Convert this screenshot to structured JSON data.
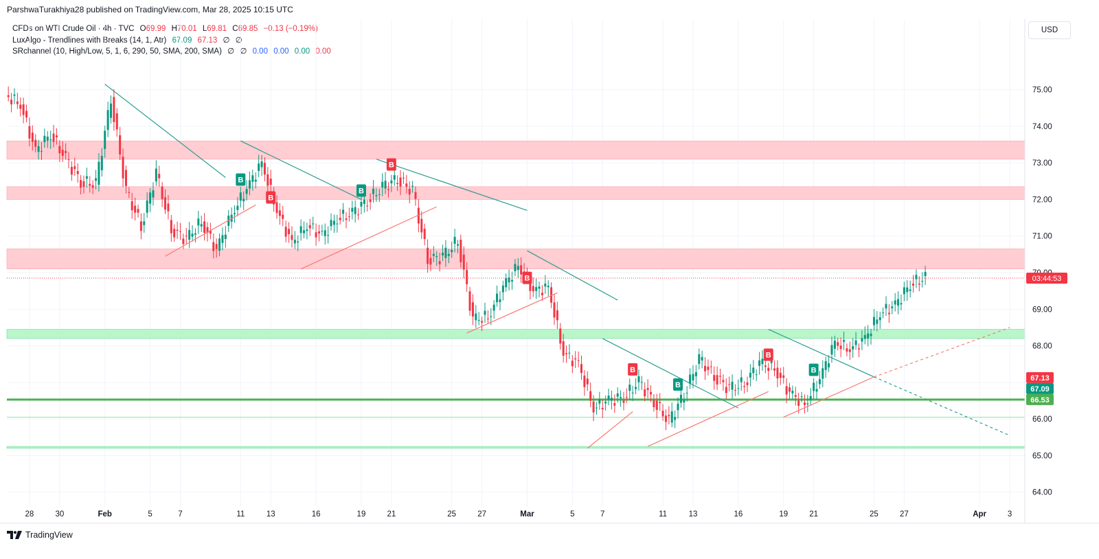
{
  "header": {
    "published_by": "ParshwaTurakhiya28 published on TradingView.com, Mar 28, 2025 10:15 UTC"
  },
  "legend": {
    "symbol": "CFDs on WTI Crude Oil · 4h · TVC",
    "open_label": "O",
    "open": "69.99",
    "high_label": "H",
    "high": "70.01",
    "low_label": "L",
    "low": "69.81",
    "close_label": "C",
    "close": "69.85",
    "change": "−0.13 (−0.19%)",
    "indicator1_name": "LuxAlgo - Trendlines with Breaks (14, 1, Atr)",
    "indicator1_v1": "67.09",
    "indicator1_v2": "67.13",
    "indicator1_e1": "∅",
    "indicator1_e2": "∅",
    "indicator2_name": "SRchannel (10, High/Low, 5, 1, 6, 290, 50, SMA, 200, SMA)",
    "indicator2_e1": "∅",
    "indicator2_e2": "∅",
    "indicator2_v1": "0.00",
    "indicator2_v2": "0.00",
    "indicator2_v3": "0.00",
    "indicator2_v4": "0.00"
  },
  "currency": "USD",
  "footer": {
    "brand": "TradingView",
    "logo_icon": "tradingview-logo-icon"
  },
  "colors": {
    "up": "#089981",
    "down": "#f23645",
    "trend_teal": "#2a9d8f",
    "trend_red": "#f77b72",
    "resistance_zone": "#ffcdd2",
    "support_zone": "#b9f6ca",
    "support_line": "#4caf50"
  },
  "chart_data": {
    "type": "candlestick",
    "title": "CFDs on WTI Crude Oil · 4h · TVC",
    "ylim": [
      63.6,
      75.8
    ],
    "y_ticks": [
      "75.00",
      "74.00",
      "73.00",
      "72.00",
      "71.00",
      "70.00",
      "69.00",
      "68.00",
      "67.00",
      "66.00",
      "65.00",
      "64.00"
    ],
    "x_ticks": [
      "28",
      "30",
      "Feb",
      "5",
      "7",
      "11",
      "13",
      "16",
      "19",
      "21",
      "25",
      "27",
      "Mar",
      "5",
      "7",
      "11",
      "13",
      "16",
      "19",
      "21",
      "25",
      "27",
      "Apr",
      "3"
    ],
    "x_tick_dates": [
      "2025-01-28",
      "2025-01-30",
      "2025-02-02",
      "2025-02-05",
      "2025-02-07",
      "2025-02-11",
      "2025-02-13",
      "2025-02-16",
      "2025-02-19",
      "2025-02-21",
      "2025-02-25",
      "2025-02-27",
      "2025-03-02",
      "2025-03-05",
      "2025-03-07",
      "2025-03-11",
      "2025-03-13",
      "2025-03-16",
      "2025-03-19",
      "2025-03-21",
      "2025-03-25",
      "2025-03-27",
      "2025-04-01",
      "2025-04-03"
    ],
    "last_close": 69.85,
    "countdown": "03:44:53",
    "price_labels": [
      {
        "value": "67.13",
        "color": "#f23645"
      },
      {
        "value": "67.09",
        "color": "#089981"
      },
      {
        "value": "66.53",
        "color": "#4caf50"
      }
    ],
    "candles": [
      {
        "date": "2025-01-27",
        "close": 74.6
      },
      {
        "date": "2025-01-28",
        "close": 73.3
      },
      {
        "date": "2025-01-29",
        "close": 73.8
      },
      {
        "date": "2025-01-30",
        "close": 73.1
      },
      {
        "date": "2025-01-31",
        "close": 72.5
      },
      {
        "date": "2025-02-01",
        "close": 72.4
      },
      {
        "date": "2025-02-02",
        "close": 74.8
      },
      {
        "date": "2025-02-03",
        "close": 72.2
      },
      {
        "date": "2025-02-04",
        "close": 71.3
      },
      {
        "date": "2025-02-05",
        "close": 72.7
      },
      {
        "date": "2025-02-06",
        "close": 71.2
      },
      {
        "date": "2025-02-07",
        "close": 70.9
      },
      {
        "date": "2025-02-08",
        "close": 71.4
      },
      {
        "date": "2025-02-09",
        "close": 70.6
      },
      {
        "date": "2025-02-10",
        "close": 71.6
      },
      {
        "date": "2025-02-11",
        "close": 72.3
      },
      {
        "date": "2025-02-12",
        "close": 73.0
      },
      {
        "date": "2025-02-13",
        "close": 71.7
      },
      {
        "date": "2025-02-14",
        "close": 70.8
      },
      {
        "date": "2025-02-15",
        "close": 71.3
      },
      {
        "date": "2025-02-16",
        "close": 71.0
      },
      {
        "date": "2025-02-17",
        "close": 71.5
      },
      {
        "date": "2025-02-18",
        "close": 71.6
      },
      {
        "date": "2025-02-19",
        "close": 72.0
      },
      {
        "date": "2025-02-20",
        "close": 72.3
      },
      {
        "date": "2025-02-21",
        "close": 72.6
      },
      {
        "date": "2025-02-22",
        "close": 72.2
      },
      {
        "date": "2025-02-23",
        "close": 70.4
      },
      {
        "date": "2025-02-24",
        "close": 70.4
      },
      {
        "date": "2025-02-25",
        "close": 70.9
      },
      {
        "date": "2025-02-26",
        "close": 68.7
      },
      {
        "date": "2025-02-27",
        "close": 68.8
      },
      {
        "date": "2025-02-28",
        "close": 69.6
      },
      {
        "date": "2025-03-01",
        "close": 70.2
      },
      {
        "date": "2025-03-02",
        "close": 69.5
      },
      {
        "date": "2025-03-03",
        "close": 69.6
      },
      {
        "date": "2025-03-04",
        "close": 67.8
      },
      {
        "date": "2025-03-05",
        "close": 67.5
      },
      {
        "date": "2025-03-06",
        "close": 66.3
      },
      {
        "date": "2025-03-07",
        "close": 66.5
      },
      {
        "date": "2025-03-08",
        "close": 66.6
      },
      {
        "date": "2025-03-09",
        "close": 67.0
      },
      {
        "date": "2025-03-10",
        "close": 66.5
      },
      {
        "date": "2025-03-11",
        "close": 65.9
      },
      {
        "date": "2025-03-12",
        "close": 66.7
      },
      {
        "date": "2025-03-13",
        "close": 67.6
      },
      {
        "date": "2025-03-14",
        "close": 67.2
      },
      {
        "date": "2025-03-15",
        "close": 66.8
      },
      {
        "date": "2025-03-16",
        "close": 67.0
      },
      {
        "date": "2025-03-17",
        "close": 67.5
      },
      {
        "date": "2025-03-18",
        "close": 67.4
      },
      {
        "date": "2025-03-19",
        "close": 66.7
      },
      {
        "date": "2025-03-20",
        "close": 66.4
      },
      {
        "date": "2025-03-21",
        "close": 67.1
      },
      {
        "date": "2025-03-22",
        "close": 68.1
      },
      {
        "date": "2025-03-23",
        "close": 67.9
      },
      {
        "date": "2025-03-24",
        "close": 68.2
      },
      {
        "date": "2025-03-25",
        "close": 68.9
      },
      {
        "date": "2025-03-26",
        "close": 69.1
      },
      {
        "date": "2025-03-27",
        "close": 69.7
      },
      {
        "date": "2025-03-28",
        "close": 69.85
      }
    ],
    "signals": [
      {
        "date": "2025-02-11",
        "type": "B",
        "color": "#089981"
      },
      {
        "date": "2025-02-13",
        "type": "B",
        "color": "#f23645"
      },
      {
        "date": "2025-02-19",
        "type": "B",
        "color": "#089981"
      },
      {
        "date": "2025-02-21",
        "type": "B",
        "color": "#f23645"
      },
      {
        "date": "2025-03-02",
        "type": "B",
        "color": "#f23645"
      },
      {
        "date": "2025-03-09",
        "type": "B",
        "color": "#f23645"
      },
      {
        "date": "2025-03-12",
        "type": "B",
        "color": "#089981"
      },
      {
        "date": "2025-03-18",
        "type": "B",
        "color": "#f23645"
      },
      {
        "date": "2025-03-21",
        "type": "B",
        "color": "#089981"
      }
    ],
    "zones": [
      {
        "from": 73.1,
        "to": 73.6,
        "type": "resistance"
      },
      {
        "from": 72.0,
        "to": 72.35,
        "type": "resistance"
      },
      {
        "from": 70.1,
        "to": 70.65,
        "type": "resistance"
      },
      {
        "from": 68.2,
        "to": 68.45,
        "type": "support"
      },
      {
        "from": 65.2,
        "to": 65.25,
        "type": "support"
      }
    ],
    "support_lines": [
      66.53,
      66.05
    ],
    "trendlines": [
      {
        "x1": "2025-02-02",
        "y1": 75.15,
        "x2": "2025-02-10",
        "y2": 72.6,
        "color": "#2a9d8f"
      },
      {
        "x1": "2025-02-11",
        "y1": 73.6,
        "x2": "2025-02-19",
        "y2": 72.0,
        "color": "#2a9d8f"
      },
      {
        "x1": "2025-02-20",
        "y1": 73.1,
        "x2": "2025-03-02",
        "y2": 71.7,
        "color": "#2a9d8f"
      },
      {
        "x1": "2025-03-02",
        "y1": 70.6,
        "x2": "2025-03-08",
        "y2": 69.25,
        "color": "#2a9d8f"
      },
      {
        "x1": "2025-03-07",
        "y1": 68.2,
        "x2": "2025-03-16",
        "y2": 66.3,
        "color": "#2a9d8f"
      },
      {
        "x1": "2025-03-18",
        "y1": 68.45,
        "x2": "2025-03-25",
        "y2": 67.15,
        "color": "#2a9d8f"
      },
      {
        "x1": "2025-03-25",
        "y1": 67.15,
        "x2": "2025-04-03",
        "y2": 65.55,
        "color": "#2a9d8f",
        "dashed": true
      },
      {
        "x1": "2025-02-06",
        "y1": 70.45,
        "x2": "2025-02-12",
        "y2": 71.85,
        "color": "#f77b72"
      },
      {
        "x1": "2025-02-15",
        "y1": 70.1,
        "x2": "2025-02-24",
        "y2": 71.8,
        "color": "#f77b72"
      },
      {
        "x1": "2025-02-26",
        "y1": 68.35,
        "x2": "2025-03-04",
        "y2": 69.45,
        "color": "#f77b72"
      },
      {
        "x1": "2025-03-06",
        "y1": 65.2,
        "x2": "2025-03-09",
        "y2": 66.2,
        "color": "#f77b72"
      },
      {
        "x1": "2025-03-10",
        "y1": 65.25,
        "x2": "2025-03-18",
        "y2": 66.75,
        "color": "#f77b72"
      },
      {
        "x1": "2025-03-19",
        "y1": 66.05,
        "x2": "2025-03-25",
        "y2": 67.15,
        "color": "#f77b72"
      },
      {
        "x1": "2025-03-25",
        "y1": 67.15,
        "x2": "2025-04-03",
        "y2": 68.5,
        "color": "#f77b72",
        "dashed": true
      }
    ]
  }
}
